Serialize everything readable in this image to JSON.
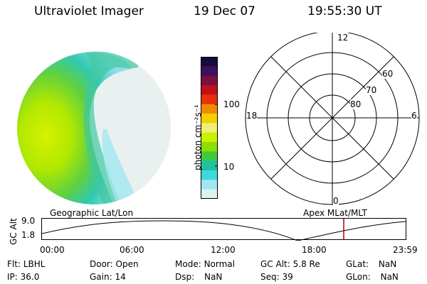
{
  "header": {
    "instrument": "Ultraviolet Imager",
    "date": "19 Dec 07",
    "time": "19:55:30 UT"
  },
  "colorbar": {
    "unit_label": "photon cm⁻²s⁻¹",
    "tick_labels": [
      "100",
      "10"
    ],
    "colors": [
      "#1a0a3a",
      "#3a1060",
      "#7a1040",
      "#c0101a",
      "#e8300a",
      "#f08a00",
      "#f5d000",
      "#f0f070",
      "#c8f000",
      "#8ae000",
      "#40c840",
      "#20c0a0",
      "#40d8e0",
      "#a0e8f0",
      "#e0f0f0"
    ]
  },
  "polar_plot": {
    "mlt_labels": [
      "12",
      "18",
      "6",
      "0"
    ],
    "lat_labels": [
      "60",
      "70",
      "80"
    ]
  },
  "altitude_strip": {
    "left_label": "Geographic Lat/Lon",
    "right_label": "Apex MLat/MLT",
    "ylabel": "GC Alt",
    "y_ticks": [
      "9.0",
      "1.8"
    ],
    "x_ticks": [
      "00:00",
      "06:00",
      "12:00",
      "18:00",
      "23:59"
    ],
    "marker_color": "#b00000"
  },
  "status": {
    "row1": [
      {
        "label": "Flt:",
        "value": "LBHL"
      },
      {
        "label": "Door:",
        "value": "Open"
      },
      {
        "label": "Mode:",
        "value": "Normal"
      },
      {
        "label": "GC Alt:",
        "value": "5.8 Re"
      },
      {
        "label": "GLat:",
        "value": "NaN"
      }
    ],
    "row2": [
      {
        "label": "IP:",
        "value": "36.0"
      },
      {
        "label": "Gain:",
        "value": "14"
      },
      {
        "label": "Dsp:",
        "value": "NaN"
      },
      {
        "label": "Seq:",
        "value": "39"
      },
      {
        "label": "GLon:",
        "value": "NaN"
      }
    ]
  }
}
